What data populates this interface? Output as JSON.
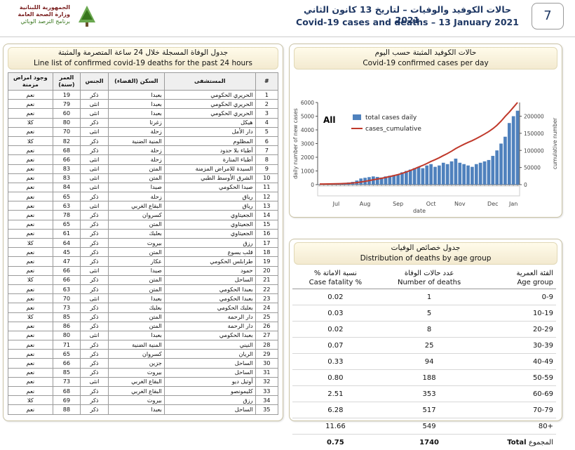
{
  "header": {
    "org": [
      "الجمهورية اللبنانية",
      "وزارة الصحة العامة",
      "برنامج الترصد الوبائي"
    ],
    "title_ar": "حالات الكوفيد والوفيات – لتاريخ 13 كانون الثاني 2021",
    "title_en": "Covid-19 cases and deaths – 13 January 2021",
    "page_number": "7"
  },
  "deaths_list": {
    "title_ar": "جدول الوفاة المسجلة خلال 24 ساعة المتصرمة والمثبتة",
    "title_en": "Line list of confirmed covid-19 deaths for the past 24 hours",
    "columns": [
      "#",
      "المستشفى",
      "السكن (القضاء)",
      "الجنس",
      "العمر (سنة)",
      "وجود امراض مزمنة"
    ],
    "rows": [
      [
        "1",
        "الحريري الحكومي",
        "بعبدا",
        "ذكر",
        "19",
        "نعم"
      ],
      [
        "2",
        "الحريري الحكومي",
        "بعبدا",
        "انثى",
        "79",
        "نعم"
      ],
      [
        "3",
        "الحريري الحكومي",
        "بعبدا",
        "انثى",
        "60",
        "نعم"
      ],
      [
        "4",
        "هيكل",
        "زغرتا",
        "ذكر",
        "80",
        "كلا"
      ],
      [
        "5",
        "دار الأمل",
        "زحلة",
        "انثى",
        "70",
        "نعم"
      ],
      [
        "6",
        "المظلوم",
        "المنية الضنية",
        "ذكر",
        "82",
        "كلا"
      ],
      [
        "7",
        "أطباء بلا حدود",
        "زحلة",
        "ذكر",
        "68",
        "نعم"
      ],
      [
        "8",
        "أطباء المنارة",
        "زحلة",
        "انثى",
        "66",
        "نعم"
      ],
      [
        "9",
        "السيدة للامراض المزمنة",
        "المتن",
        "انثى",
        "83",
        "نعم"
      ],
      [
        "10",
        "الشرق الأوسط الطبي",
        "المتن",
        "انثى",
        "83",
        "نعم"
      ],
      [
        "11",
        "صيدا الحكومي",
        "صيدا",
        "انثى",
        "84",
        "نعم"
      ],
      [
        "12",
        "رياق",
        "زحلة",
        "ذكر",
        "65",
        "نعم"
      ],
      [
        "13",
        "رياق",
        "البقاع الغربي",
        "انثى",
        "63",
        "نعم"
      ],
      [
        "14",
        "الجعيتاوي",
        "كسروان",
        "ذكر",
        "78",
        "نعم"
      ],
      [
        "15",
        "الجعيتاوي",
        "المتن",
        "ذكر",
        "65",
        "نعم"
      ],
      [
        "16",
        "الجعيتاوي",
        "بعلبك",
        "ذكر",
        "61",
        "نعم"
      ],
      [
        "17",
        "رزق",
        "بيروت",
        "ذكر",
        "64",
        "كلا"
      ],
      [
        "18",
        "قلب يسوع",
        "المتن",
        "ذكر",
        "45",
        "نعم"
      ],
      [
        "19",
        "طرابلس الحكومي",
        "عكار",
        "ذكر",
        "47",
        "نعم"
      ],
      [
        "20",
        "حمود",
        "صيدا",
        "انثى",
        "66",
        "نعم"
      ],
      [
        "21",
        "الساحل",
        "المتن",
        "ذكر",
        "66",
        "كلا"
      ],
      [
        "22",
        "بعبدا الحكومي",
        "المتن",
        "ذكر",
        "63",
        "نعم"
      ],
      [
        "23",
        "بعبدا الحكومي",
        "بعبدا",
        "انثى",
        "70",
        "نعم"
      ],
      [
        "24",
        "بعلبك الحكومي",
        "بعلبك",
        "ذكر",
        "73",
        "نعم"
      ],
      [
        "25",
        "دار الرحمة",
        "المتن",
        "ذكر",
        "85",
        "كلا"
      ],
      [
        "26",
        "دار الرحمة",
        "المتن",
        "ذكر",
        "86",
        "نعم"
      ],
      [
        "27",
        "بعبدا الحكومي",
        "بعبدا",
        "انثى",
        "80",
        "نعم"
      ],
      [
        "28",
        "النيني",
        "المنية الضنية",
        "ذكر",
        "71",
        "نعم"
      ],
      [
        "29",
        "الريان",
        "كسروان",
        "ذكر",
        "65",
        "نعم"
      ],
      [
        "30",
        "الساحل",
        "جزين",
        "ذكر",
        "66",
        "نعم"
      ],
      [
        "31",
        "الساحل",
        "بيروت",
        "ذكر",
        "85",
        "نعم"
      ],
      [
        "32",
        "أوتيل ديو",
        "البقاع الغربي",
        "انثى",
        "73",
        "نعم"
      ],
      [
        "33",
        "كليمونصو",
        "البقاع الغربي",
        "ذكر",
        "68",
        "نعم"
      ],
      [
        "34",
        "رزق",
        "بيروت",
        "ذكر",
        "69",
        "كلا"
      ],
      [
        "35",
        "الساحل",
        "بعبدا",
        "ذكر",
        "88",
        "نعم"
      ]
    ]
  },
  "chart_data": {
    "type": "bar",
    "title_ar": "حالات الكوفيد المثبتة حسب اليوم",
    "title": "Covid-19 confirmed cases per day",
    "annotation": "All",
    "x_label": "date",
    "y_label": "daily number of new cases",
    "y2_label": "cumulative number",
    "categories": [
      null,
      null,
      null,
      null,
      "Jul",
      null,
      null,
      null,
      null,
      null,
      null,
      "Aug",
      null,
      null,
      null,
      null,
      null,
      null,
      null,
      "Sep",
      null,
      null,
      null,
      null,
      null,
      null,
      null,
      "Oct",
      null,
      null,
      null,
      null,
      null,
      null,
      "Nov",
      null,
      null,
      null,
      null,
      null,
      null,
      null,
      "Dec",
      null,
      null,
      null,
      null,
      "Jan",
      null
    ],
    "series": [
      {
        "name": "total cases daily",
        "color": "#4f81bd",
        "values": [
          20,
          30,
          40,
          60,
          80,
          100,
          130,
          160,
          200,
          300,
          450,
          500,
          550,
          600,
          560,
          520,
          600,
          650,
          700,
          750,
          900,
          1000,
          1100,
          1200,
          1300,
          1200,
          1400,
          1500,
          1300,
          1400,
          1600,
          1500,
          1700,
          1900,
          1600,
          1500,
          1400,
          1300,
          1500,
          1600,
          1700,
          1800,
          2100,
          2500,
          3000,
          3500,
          4500,
          5000,
          5400
        ]
      },
      {
        "name": "cases_cumulative",
        "color": "#c0392b",
        "axis": "y2",
        "values": [
          1800,
          1900,
          2100,
          2300,
          2600,
          2900,
          3300,
          3900,
          4800,
          6000,
          7700,
          9600,
          11800,
          14200,
          16400,
          18500,
          21000,
          23600,
          26400,
          29400,
          33000,
          37000,
          41400,
          46200,
          51400,
          56200,
          61800,
          67800,
          73000,
          78600,
          85000,
          91000,
          97800,
          105400,
          111800,
          117800,
          123400,
          128600,
          134600,
          141000,
          147800,
          155000,
          163400,
          173400,
          185400,
          199400,
          212000,
          226000,
          240000
        ]
      }
    ],
    "ylim": [
      0,
      6000
    ],
    "yticks": [
      0,
      1000,
      2000,
      3000,
      4000,
      5000,
      6000
    ],
    "y2lim": [
      0,
      240000
    ],
    "y2ticks": [
      0,
      50000,
      100000,
      150000,
      200000
    ],
    "grid": false
  },
  "age_table": {
    "title_ar": "جدول خصائص الوفيات",
    "title_en": "Distribution of deaths by age group",
    "columns": [
      {
        "ar": "الفئة العمرية",
        "en": "Age group"
      },
      {
        "ar": "عدد حالات الوفاة",
        "en": "Number of deaths"
      },
      {
        "ar": "نسبة الاماتة %",
        "en": "Case fatality %"
      }
    ],
    "rows": [
      [
        "0-9",
        "1",
        "0.02"
      ],
      [
        "10-19",
        "5",
        "0.03"
      ],
      [
        "20-29",
        "8",
        "0.02"
      ],
      [
        "30-39",
        "25",
        "0.07"
      ],
      [
        "40-49",
        "94",
        "0.33"
      ],
      [
        "50-59",
        "188",
        "0.80"
      ],
      [
        "60-69",
        "353",
        "2.51"
      ],
      [
        "70-79",
        "517",
        "6.28"
      ],
      [
        "80+",
        "549",
        "11.66"
      ]
    ],
    "total": {
      "label_ar": "المجموع",
      "label_en": "Total",
      "deaths": "1740",
      "fatality": "0.75"
    }
  }
}
